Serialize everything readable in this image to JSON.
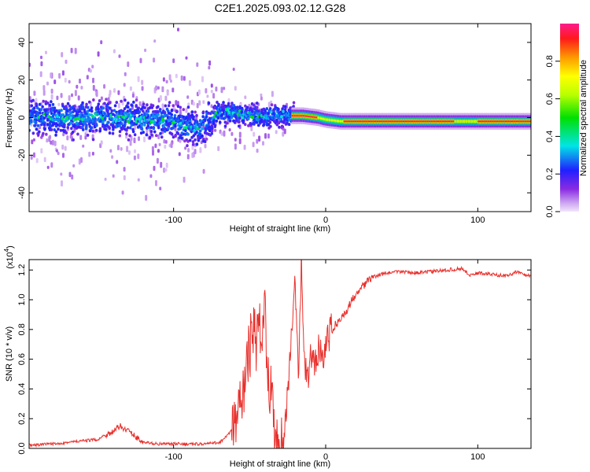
{
  "title": "C2E1.2025.093.02.12.G28",
  "chart_data": [
    {
      "type": "heatmap",
      "xlabel": "Height of straight line (km)",
      "ylabel": "Frequency (Hz)",
      "xlim": [
        -195,
        135
      ],
      "ylim": [
        -50,
        50
      ],
      "x_ticks": [
        -100,
        0,
        100
      ],
      "x_tick_labels": [
        "-100",
        "0",
        "100"
      ],
      "y_ticks": [
        -40,
        -20,
        0,
        20,
        40
      ],
      "y_tick_labels": [
        "-40",
        "-20",
        "0",
        "20",
        "40"
      ],
      "colorbar": {
        "label": "Normalized spectral amplitude",
        "range": [
          0,
          1
        ],
        "ticks": [
          0.0,
          0.2,
          0.4,
          0.6,
          0.8
        ],
        "tick_labels": [
          "0.0",
          "0.2",
          "0.4",
          "0.6",
          "0.8"
        ]
      },
      "ridge": {
        "x": [
          -195,
          -180,
          -160,
          -140,
          -120,
          -100,
          -85,
          -70,
          -60,
          -50,
          -40,
          -35,
          -25,
          -15,
          -5,
          0,
          10,
          30,
          60,
          90,
          100,
          135
        ],
        "freq": [
          0,
          0,
          0,
          0,
          -1,
          -2,
          -6,
          2,
          3,
          1,
          0,
          1,
          1,
          1,
          0,
          -1,
          -2,
          -2,
          -2,
          -2,
          -2,
          -2
        ]
      }
    },
    {
      "type": "line",
      "xlabel": "Height of straight line (km)",
      "ylabel": "SNR (10 * v/v)",
      "multiplier": "(x10",
      "multiplier_exp": "4",
      "multiplier_close": ")",
      "xlim": [
        -195,
        135
      ],
      "ylim": [
        0,
        1.27
      ],
      "x_ticks": [
        -100,
        0,
        100
      ],
      "x_tick_labels": [
        "-100",
        "0",
        "100"
      ],
      "y_ticks": [
        0.0,
        0.2,
        0.4,
        0.6,
        0.8,
        1.0,
        1.2
      ],
      "y_tick_labels": [
        "0.0",
        "0.2",
        "0.4",
        "0.6",
        "0.8",
        "1.0",
        "1.2"
      ],
      "series": [
        {
          "color": "#e8302c",
          "x": [
            -195,
            -180,
            -170,
            -160,
            -150,
            -145,
            -140,
            -135,
            -130,
            -125,
            -120,
            -110,
            -100,
            -90,
            -80,
            -70,
            -65,
            -60,
            -57,
            -54,
            -51,
            -48,
            -45,
            -42,
            -40,
            -38,
            -36,
            -34,
            -32,
            -30,
            -28,
            -26,
            -24,
            -22,
            -20,
            -18,
            -16,
            -14,
            -12,
            -10,
            -8,
            -6,
            -4,
            -2,
            0,
            5,
            10,
            15,
            20,
            25,
            30,
            40,
            50,
            60,
            70,
            80,
            90,
            95,
            100,
            110,
            120,
            125,
            130,
            135
          ],
          "y": [
            0.02,
            0.03,
            0.04,
            0.05,
            0.06,
            0.09,
            0.11,
            0.15,
            0.12,
            0.08,
            0.04,
            0.03,
            0.03,
            0.03,
            0.03,
            0.04,
            0.08,
            0.15,
            0.25,
            0.4,
            0.6,
            0.8,
            0.7,
            0.85,
            0.92,
            0.6,
            0.35,
            0.15,
            0.05,
            0.02,
            0.04,
            0.25,
            0.5,
            0.85,
            1.15,
            0.4,
            1.27,
            0.55,
            0.45,
            0.6,
            0.55,
            0.65,
            0.7,
            0.62,
            0.7,
            0.82,
            0.87,
            0.95,
            1.05,
            1.1,
            1.15,
            1.18,
            1.19,
            1.18,
            1.19,
            1.2,
            1.21,
            1.16,
            1.18,
            1.17,
            1.16,
            1.19,
            1.17,
            1.16
          ]
        }
      ]
    }
  ]
}
